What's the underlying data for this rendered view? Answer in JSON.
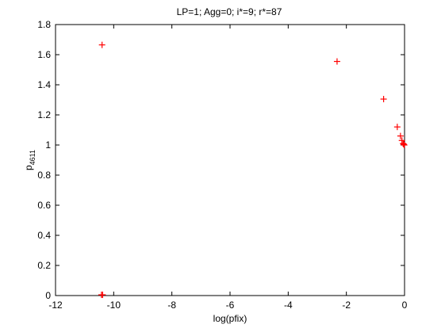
{
  "chart_data": {
    "type": "scatter",
    "title": "LP=1; Agg=0; i*=9; r*=87",
    "xlabel": "log(pfix)",
    "ylabel_main": "p",
    "ylabel_sub": "4611",
    "xlim": [
      -12,
      0
    ],
    "ylim": [
      0,
      1.8
    ],
    "xticks": [
      -12,
      -10,
      -8,
      -6,
      -4,
      -2,
      0
    ],
    "yticks": [
      0,
      0.2,
      0.4,
      0.6,
      0.8,
      1,
      1.2,
      1.4,
      1.6,
      1.8
    ],
    "grid": false,
    "marker": "+",
    "marker_color": "#ff0000",
    "points": [
      {
        "x": -10.4,
        "y": 1.665
      },
      {
        "x": -10.42,
        "y": 0.005
      },
      {
        "x": -10.38,
        "y": 0.005
      },
      {
        "x": -2.32,
        "y": 1.555
      },
      {
        "x": -0.72,
        "y": 1.305
      },
      {
        "x": -0.25,
        "y": 1.12
      },
      {
        "x": -0.14,
        "y": 1.06
      },
      {
        "x": -0.09,
        "y": 1.03
      },
      {
        "x": -0.05,
        "y": 1.01
      },
      {
        "x": -0.03,
        "y": 1.005
      },
      {
        "x": -0.01,
        "y": 1.0
      }
    ]
  }
}
